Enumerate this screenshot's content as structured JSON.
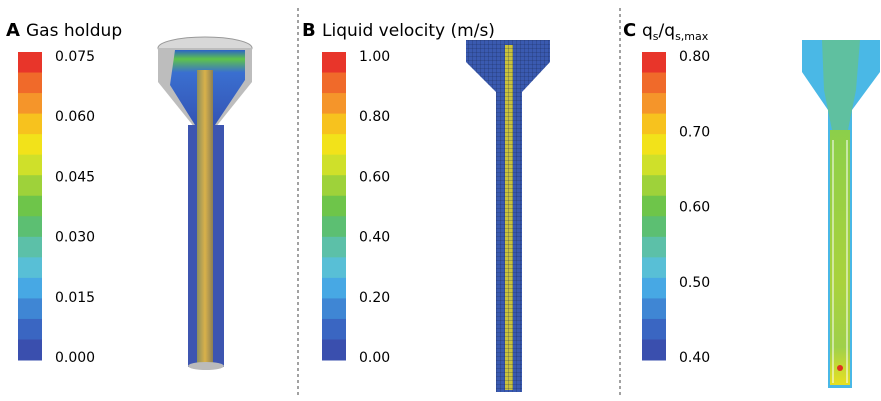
{
  "panels": [
    {
      "letter": "A",
      "title": "Gas holdup",
      "ticks": [
        "0.075",
        "0.060",
        "0.045",
        "0.030",
        "0.015",
        "0.000"
      ]
    },
    {
      "letter": "B",
      "title": "Liquid velocity (m/s)",
      "ticks": [
        "1.00",
        "0.80",
        "0.60",
        "0.40",
        "0.20",
        "0.00"
      ]
    },
    {
      "letter": "C",
      "title_parts": [
        "q",
        "s",
        "/q",
        "s,max"
      ],
      "ticks": [
        "0.80",
        "0.70",
        "0.60",
        "0.50",
        "0.40"
      ]
    }
  ]
}
